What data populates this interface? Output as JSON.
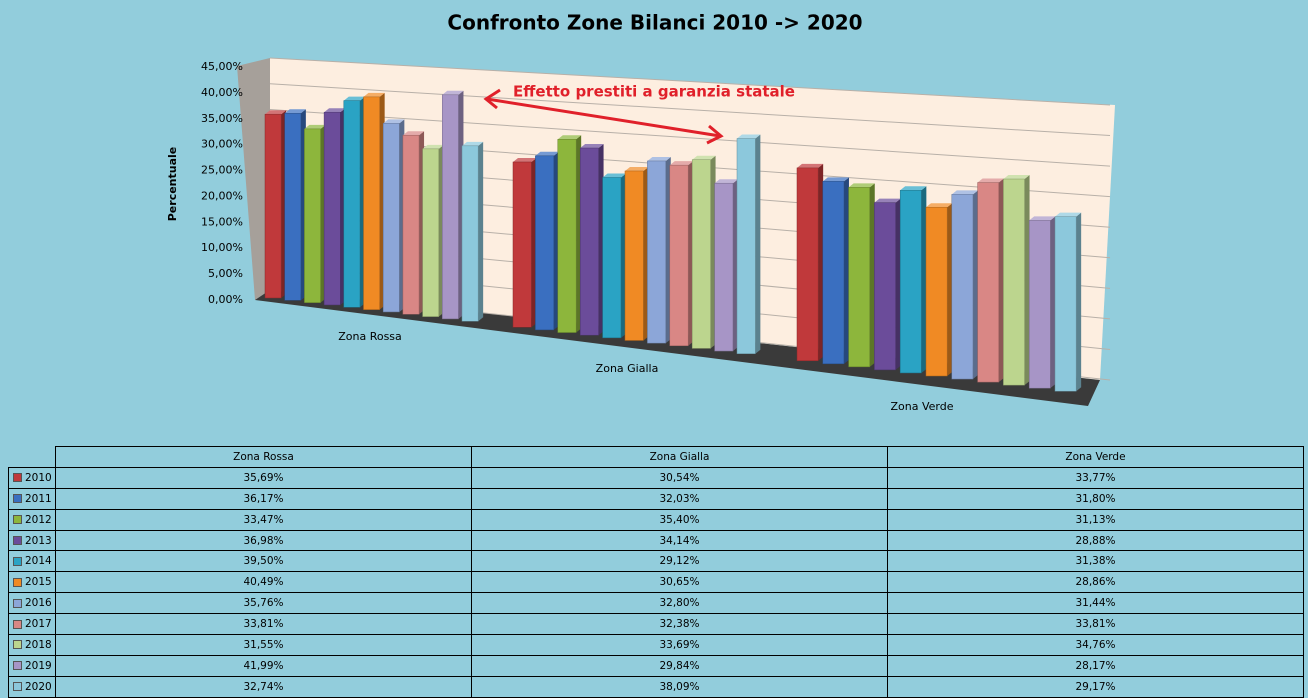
{
  "chart_data": {
    "type": "bar3d",
    "title": "Confronto Zone Bilanci 2010 -> 2020",
    "y_label": "Percentuale",
    "annotation": "Effetto prestiti a garanzia statale",
    "categories": [
      "Zona Rossa",
      "Zona Gialla",
      "Zona Verde"
    ],
    "ylim": [
      0,
      45
    ],
    "yticks": [
      {
        "value": 0,
        "label": "0,00%"
      },
      {
        "value": 5,
        "label": "5,00%"
      },
      {
        "value": 10,
        "label": "10,00%"
      },
      {
        "value": 15,
        "label": "15,00%"
      },
      {
        "value": 20,
        "label": "20,00%"
      },
      {
        "value": 25,
        "label": "25,00%"
      },
      {
        "value": 30,
        "label": "30,00%"
      },
      {
        "value": 35,
        "label": "35,00%"
      },
      {
        "value": 40,
        "label": "40,00%"
      },
      {
        "value": 45,
        "label": "45,00%"
      }
    ],
    "grid": true,
    "series": [
      {
        "name": "2010",
        "color": "#c0393b",
        "values": [
          35.69,
          30.54,
          33.77
        ],
        "value_labels": [
          "35,69%",
          "30,54%",
          "33,77%"
        ]
      },
      {
        "name": "2011",
        "color": "#3a6fc0",
        "values": [
          36.17,
          32.03,
          31.8
        ],
        "value_labels": [
          "36,17%",
          "32,03%",
          "31,80%"
        ]
      },
      {
        "name": "2012",
        "color": "#8db63c",
        "values": [
          33.47,
          35.4,
          31.13
        ],
        "value_labels": [
          "33,47%",
          "35,40%",
          "31,13%"
        ]
      },
      {
        "name": "2013",
        "color": "#6b4c9a",
        "values": [
          36.98,
          34.14,
          28.88
        ],
        "value_labels": [
          "36,98%",
          "34,14%",
          "28,88%"
        ]
      },
      {
        "name": "2014",
        "color": "#2aa3c4",
        "values": [
          39.5,
          29.12,
          31.38
        ],
        "value_labels": [
          "39,50%",
          "29,12%",
          "31,38%"
        ]
      },
      {
        "name": "2015",
        "color": "#f08a24",
        "values": [
          40.49,
          30.65,
          28.86
        ],
        "value_labels": [
          "40,49%",
          "30,65%",
          "28,86%"
        ]
      },
      {
        "name": "2016",
        "color": "#8ca6d8",
        "values": [
          35.76,
          32.8,
          31.44
        ],
        "value_labels": [
          "35,76%",
          "32,80%",
          "31,44%"
        ]
      },
      {
        "name": "2017",
        "color": "#d98785",
        "values": [
          33.81,
          32.38,
          33.81
        ],
        "value_labels": [
          "33,81%",
          "32,38%",
          "33,81%"
        ]
      },
      {
        "name": "2018",
        "color": "#bcd58e",
        "values": [
          31.55,
          33.69,
          34.76
        ],
        "value_labels": [
          "31,55%",
          "33,69%",
          "34,76%"
        ]
      },
      {
        "name": "2019",
        "color": "#a795c6",
        "values": [
          41.99,
          29.84,
          28.17
        ],
        "value_labels": [
          "41,99%",
          "29,84%",
          "28,17%"
        ]
      },
      {
        "name": "2020",
        "color": "#8cc8dc",
        "values": [
          32.74,
          38.09,
          29.17
        ],
        "value_labels": [
          "32,74%",
          "38,09%",
          "29,17%"
        ]
      }
    ]
  }
}
